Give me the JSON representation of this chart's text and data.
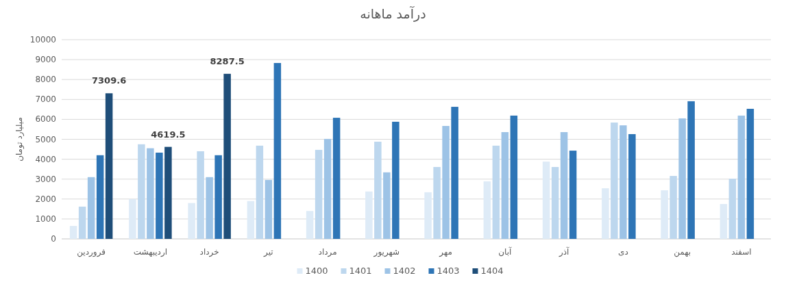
{
  "chart_data": {
    "type": "bar",
    "title": "درآمد ماهانه",
    "ylabel": "میلیارد تومان",
    "categories": [
      "فروردین",
      "اردیبهشت",
      "خرداد",
      "تیر",
      "مرداد",
      "شهریور",
      "مهر",
      "آبان",
      "آذر",
      "دی",
      "بهمن",
      "اسفند"
    ],
    "series": [
      {
        "name": "1400",
        "color": "#deebf7",
        "values": [
          650,
          2000,
          1800,
          1900,
          1400,
          2380,
          2340,
          2890,
          3880,
          2540,
          2440,
          1750
        ]
      },
      {
        "name": "1401",
        "color": "#bdd7ee",
        "values": [
          1620,
          4750,
          4400,
          4680,
          4470,
          4880,
          3610,
          4680,
          3610,
          5840,
          3160,
          3020
        ]
      },
      {
        "name": "1402",
        "color": "#9dc3e6",
        "values": [
          3100,
          4550,
          3100,
          2960,
          5020,
          3340,
          5670,
          5360,
          5360,
          5700,
          6050,
          6190
        ]
      },
      {
        "name": "1403",
        "color": "#2e75b6",
        "values": [
          4200,
          4330,
          4200,
          8830,
          6080,
          5880,
          6630,
          6190,
          4430,
          5260,
          6910,
          6530
        ]
      },
      {
        "name": "1404",
        "color": "#1f4e79",
        "values": [
          7309.6,
          4619.5,
          8287.5,
          null,
          null,
          null,
          null,
          null,
          null,
          null,
          null,
          null
        ],
        "value_labels": [
          "7309.6",
          "4619.5",
          "8287.5",
          null,
          null,
          null,
          null,
          null,
          null,
          null,
          null,
          null
        ]
      }
    ],
    "ylim": [
      0,
      10000
    ],
    "yticks": [
      0,
      1000,
      2000,
      3000,
      4000,
      5000,
      6000,
      7000,
      8000,
      9000,
      10000
    ],
    "grid": "y",
    "legend": "bottom"
  }
}
